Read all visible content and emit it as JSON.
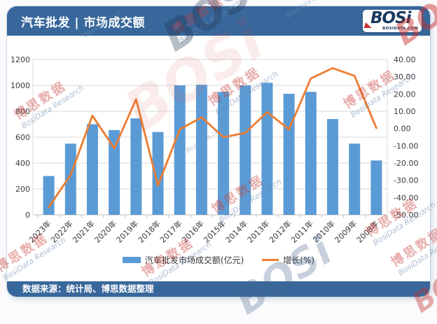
{
  "header": {
    "title": "汽车批发 | 市场成交额",
    "logo": {
      "brand": "BOSi",
      "domain": "BOSIDATA.COM"
    }
  },
  "footer": {
    "source": "数据来源：统计局、博思数据整理"
  },
  "watermark": {
    "cjk": "博思数据",
    "latin": "BosiData Research",
    "domain": "BosiData.com",
    "logo": "BOSi"
  },
  "colors": {
    "banner_blue": "#38679b",
    "bar_blue": "#5b9bd5",
    "line_orange": "#ed7d31",
    "gridline": "#d9d9d9",
    "axis_line": "#bfbfbf",
    "tick_text": "#3a3a3a"
  },
  "chart_data": {
    "type": "bar",
    "subtype": "bar+line combo, dual axis",
    "title": "汽车批发 | 市场成交额",
    "categories": [
      "2023年",
      "2022年",
      "2021年",
      "2020年",
      "2019年",
      "2018年",
      "2017年",
      "2016年",
      "2015年",
      "2014年",
      "2013年",
      "2012年",
      "2011年",
      "2010年",
      "2009年",
      "2008年"
    ],
    "series": [
      {
        "name": "汽车批发市场成交额(亿元)",
        "type": "bar",
        "axis": "left",
        "color": "#5b9bd5",
        "values": [
          300,
          550,
          700,
          655,
          745,
          640,
          1000,
          1005,
          950,
          1000,
          1020,
          935,
          950,
          740,
          550,
          420
        ]
      },
      {
        "name": "增长(%)",
        "type": "line",
        "axis": "right",
        "color": "#ed7d31",
        "values": [
          -45.5,
          -27,
          7.5,
          -11.5,
          17,
          -33,
          -0.5,
          6.5,
          -5,
          -2.5,
          9.5,
          -0.5,
          29,
          35,
          30.5,
          0.3
        ]
      }
    ],
    "left_axis": {
      "min": 0,
      "max": 1200,
      "step": 200,
      "ticks": [
        "0",
        "200",
        "400",
        "600",
        "800",
        "1000",
        "1200"
      ]
    },
    "right_axis": {
      "min": -50,
      "max": 40,
      "step": 10,
      "ticks": [
        "40.00",
        "30.00",
        "20.00",
        "10.00",
        "0.00",
        "-10.00",
        "-20.00",
        "-30.00",
        "-40.00",
        "-50.00"
      ]
    },
    "grid": true,
    "legend_position": "bottom"
  }
}
